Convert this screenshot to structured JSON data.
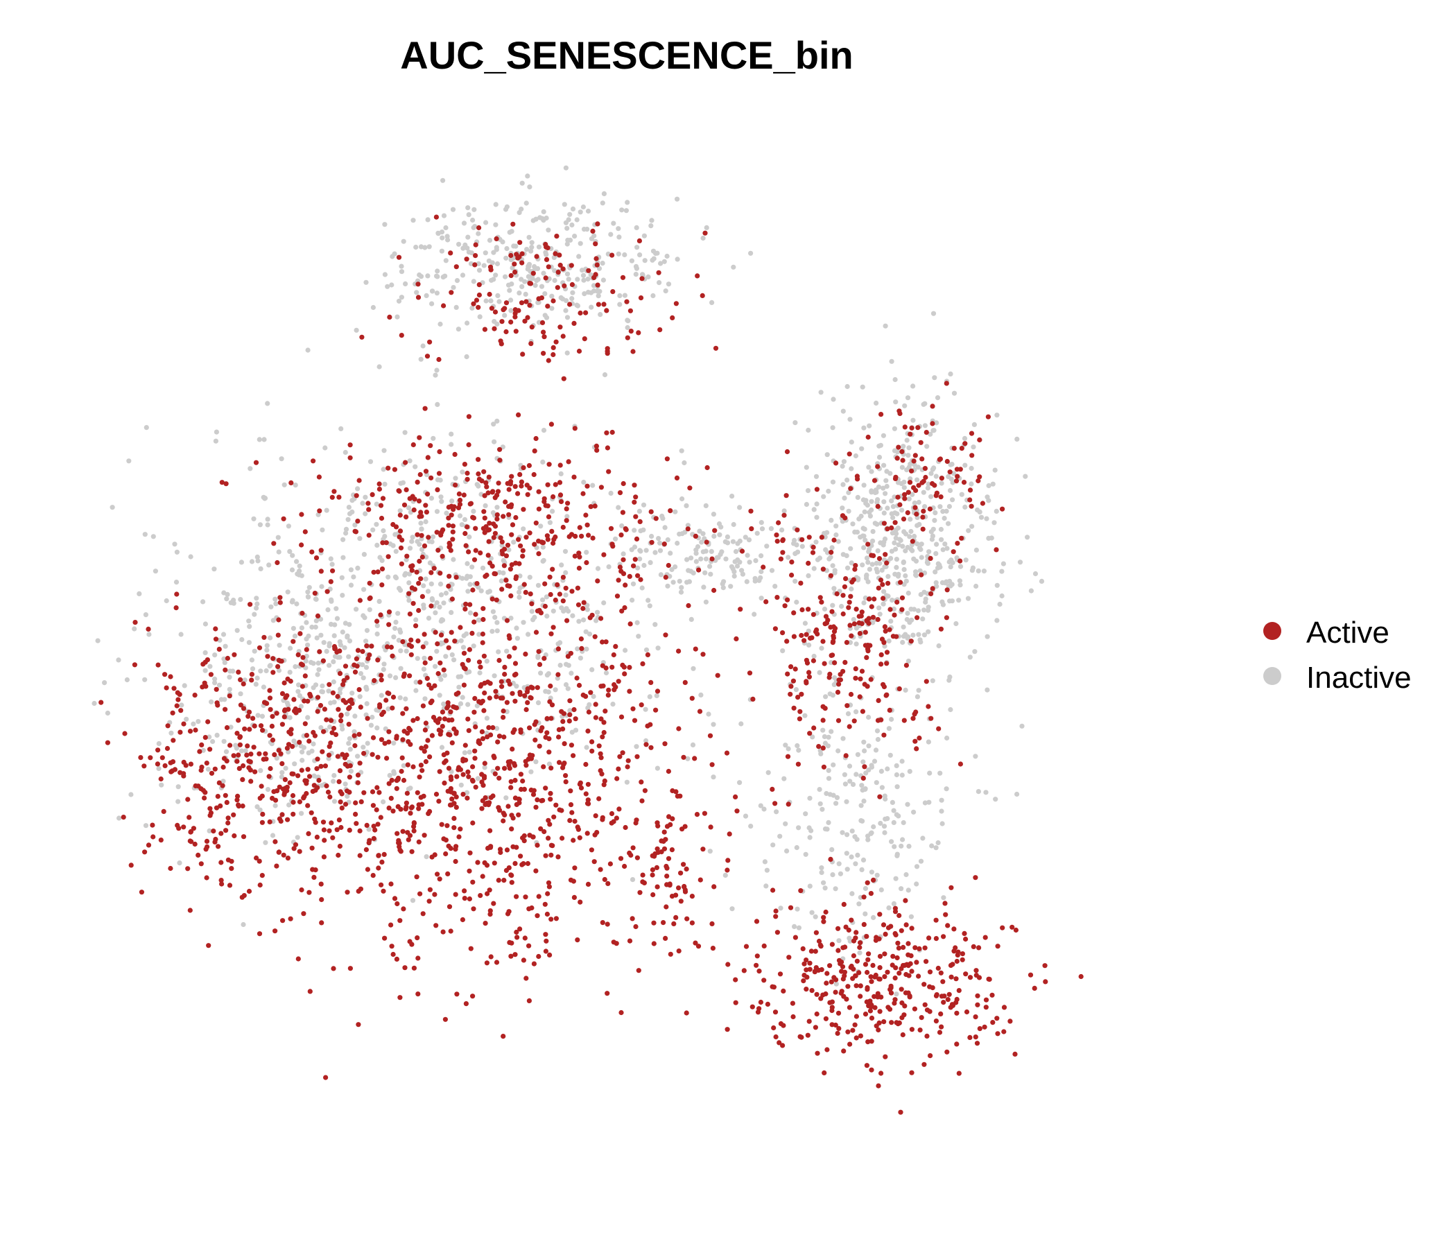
{
  "chart_data": {
    "type": "scatter",
    "title": "AUC_SENESCENCE_bin",
    "xlabel": "",
    "ylabel": "",
    "axes_visible": false,
    "grid": false,
    "legend_position": "right",
    "categories": [
      "Active",
      "Inactive"
    ],
    "colors": {
      "Active": "#b22222",
      "Inactive": "#cccccc"
    },
    "xlim": [
      -10,
      10
    ],
    "ylim": [
      -10,
      10
    ],
    "series": [
      {
        "name": "Active",
        "color": "#b22222",
        "density_regions": [
          {
            "cx": -2.6,
            "cy": -2.0,
            "rx": 3.6,
            "ry": 4.2,
            "weight": 900
          },
          {
            "cx": -6.8,
            "cy": -2.0,
            "rx": 2.4,
            "ry": 2.6,
            "weight": 380
          },
          {
            "cx": -2.4,
            "cy": 2.7,
            "rx": 3.6,
            "ry": 1.5,
            "weight": 320
          },
          {
            "cx": -1.4,
            "cy": 7.0,
            "rx": 2.6,
            "ry": 1.4,
            "weight": 140
          },
          {
            "cx": 4.2,
            "cy": 0.5,
            "rx": 1.8,
            "ry": 2.5,
            "weight": 240
          },
          {
            "cx": 4.7,
            "cy": -6.3,
            "rx": 2.5,
            "ry": 1.5,
            "weight": 360
          },
          {
            "cx": 0.9,
            "cy": -4.2,
            "rx": 0.9,
            "ry": 1.6,
            "weight": 70
          },
          {
            "cx": 5.8,
            "cy": 3.4,
            "rx": 1.1,
            "ry": 1.5,
            "weight": 80
          }
        ]
      },
      {
        "name": "Inactive",
        "color": "#cccccc",
        "density_regions": [
          {
            "cx": -3.5,
            "cy": 1.0,
            "rx": 4.5,
            "ry": 3.5,
            "weight": 650
          },
          {
            "cx": -1.6,
            "cy": 7.6,
            "rx": 2.8,
            "ry": 1.3,
            "weight": 330
          },
          {
            "cx": 5.2,
            "cy": 2.3,
            "rx": 1.8,
            "ry": 2.6,
            "weight": 520
          },
          {
            "cx": 4.3,
            "cy": -3.2,
            "rx": 2.0,
            "ry": 2.6,
            "weight": 230
          },
          {
            "cx": 1.6,
            "cy": 1.9,
            "rx": 2.0,
            "ry": 1.1,
            "weight": 150
          },
          {
            "cx": -6.5,
            "cy": -1.0,
            "rx": 2.6,
            "ry": 2.6,
            "weight": 230
          }
        ]
      }
    ]
  }
}
